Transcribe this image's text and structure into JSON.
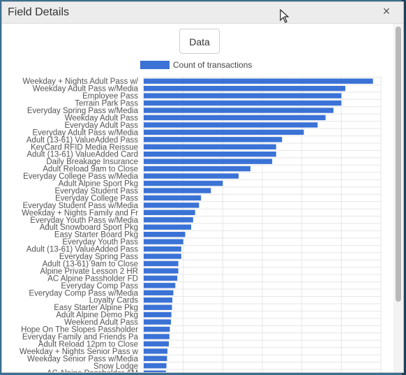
{
  "dialog": {
    "title": "Field Details",
    "close_glyph": "×",
    "data_button_label": "Data"
  },
  "colors": {
    "bar": "#3a72d6",
    "grid": "#e6e6e6",
    "label": "#555555"
  },
  "chart_data": {
    "type": "bar",
    "orientation": "horizontal",
    "legend": "Count of transactions",
    "legend_position": "top",
    "grid": true,
    "xlim": [
      0,
      12
    ],
    "categories": [
      "Weekday + Nights Adult Pass w/",
      "Weekday Adult Pass w/Media",
      "Employee Pass",
      "Terrain Park Pass",
      "Everyday Spring Pass w/Media",
      "Weekday Adult Pass",
      "Everyday Adult Pass",
      "Everyday Adult Pass w/Media",
      "Adult (13-61) ValueAdded Pass",
      "KeyCard RFID Media Reissue",
      "Adult (13-61) ValueAdded Card",
      "Daily Breakage Insurance",
      "Adult Reload 9am to Close",
      "Everyday College Pass w/Media",
      "Adult Alpine Sport Pkg",
      "Everyday Student Pass",
      "Everyday College Pass",
      "Everyday Student Pass w/Media",
      "Weekday + Nights Family and Fr",
      "Everyday Youth Pass w/Media",
      "Adult Snowboard Sport Pkg",
      "Easy Starter Board Pkg",
      "Everyday Youth Pass",
      "Adult (13-61) ValueAdded Pass",
      "Everyday Spring Pass",
      "Adult (13-61) 9am to Close",
      "Alpine Private Lesson 2 HR",
      "AC Alpine Passholder FD",
      "Everyday Comp Pass",
      "Everyday Comp Pass w/Media",
      "Loyalty Cards",
      "Easy Starter Alpine Pkg",
      "Adult Alpine Demo Pkg",
      "Weekend Adult Pass",
      "Hope On The Slopes Passholder",
      "Everyday Family and Friends Pa",
      "Adult Reload 12pm to Close",
      "Weekday + Nights Senior Pass w",
      "Weekday Senior Pass w/Media",
      "Snow Lodge",
      "AC Alpine Passholder AM"
    ],
    "values": [
      11.6,
      10.2,
      10.0,
      10.0,
      9.6,
      9.2,
      8.8,
      8.1,
      7.0,
      6.7,
      6.7,
      6.5,
      5.4,
      4.8,
      4.0,
      3.4,
      2.9,
      2.8,
      2.6,
      2.5,
      2.4,
      2.1,
      2.0,
      1.9,
      1.9,
      1.75,
      1.75,
      1.7,
      1.6,
      1.5,
      1.45,
      1.43,
      1.4,
      1.38,
      1.32,
      1.3,
      1.27,
      1.2,
      1.18,
      1.15,
      1.12
    ]
  }
}
